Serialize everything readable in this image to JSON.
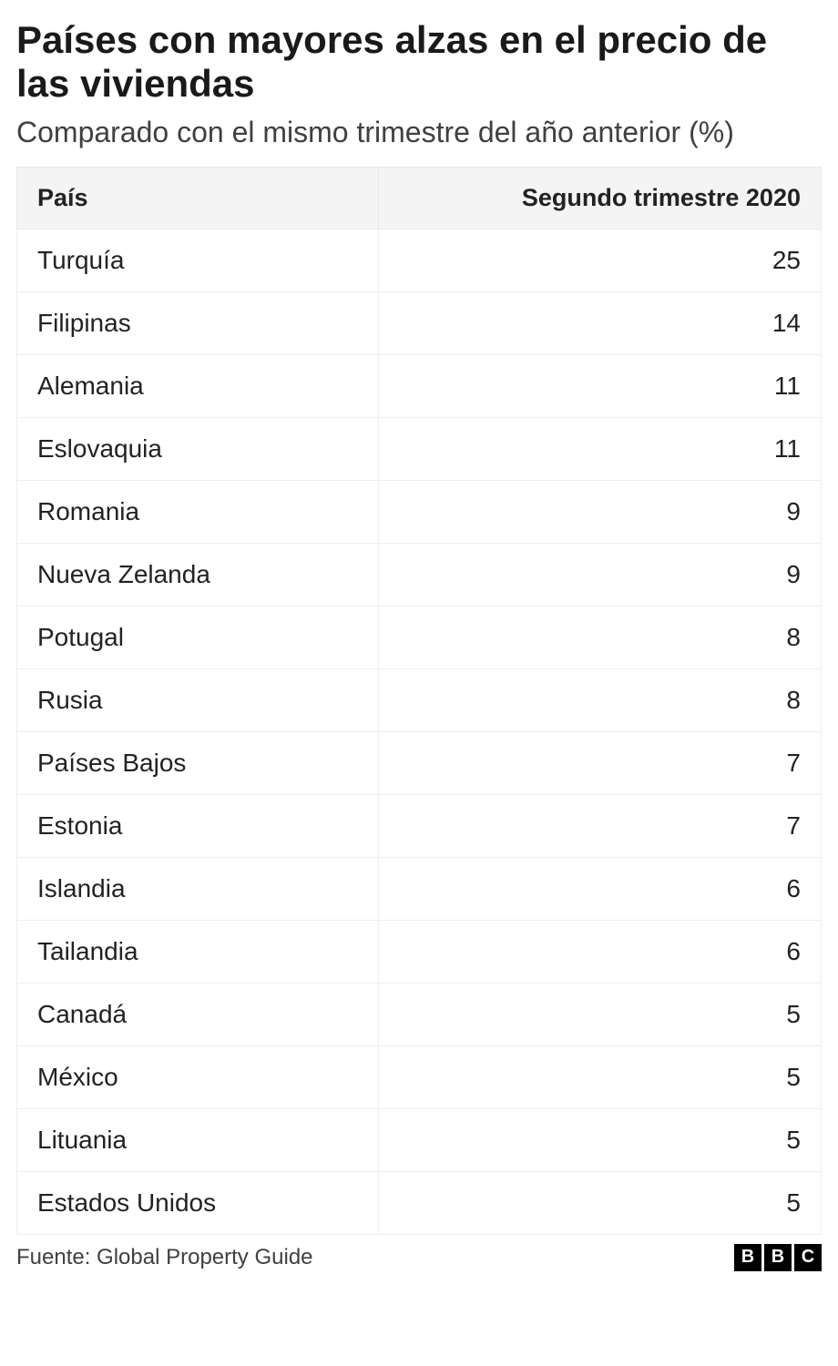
{
  "header": {
    "title": "Países con mayores alzas en el precio de las viviendas",
    "subtitle": "Comparado con el mismo trimestre del año anterior (%)"
  },
  "table": {
    "type": "table",
    "columns": [
      {
        "key": "country",
        "label": "País",
        "align": "left",
        "width_pct": 45
      },
      {
        "key": "value",
        "label": "Segundo trimestre 2020",
        "align": "right",
        "width_pct": 55
      }
    ],
    "rows": [
      {
        "country": "Turquía",
        "value": 25
      },
      {
        "country": "Filipinas",
        "value": 14
      },
      {
        "country": "Alemania",
        "value": 11
      },
      {
        "country": "Eslovaquia",
        "value": 11
      },
      {
        "country": "Romania",
        "value": 9
      },
      {
        "country": "Nueva Zelanda",
        "value": 9
      },
      {
        "country": "Potugal",
        "value": 8
      },
      {
        "country": "Rusia",
        "value": 8
      },
      {
        "country": "Países Bajos",
        "value": 7
      },
      {
        "country": "Estonia",
        "value": 7
      },
      {
        "country": "Islandia",
        "value": 6
      },
      {
        "country": "Tailandia",
        "value": 6
      },
      {
        "country": "Canadá",
        "value": 5
      },
      {
        "country": "México",
        "value": 5
      },
      {
        "country": "Lituania",
        "value": 5
      },
      {
        "country": "Estados Unidos",
        "value": 5
      }
    ],
    "header_bg": "#f4f4f4",
    "border_color": "#e8e8e8",
    "row_border_color": "#eeeeee",
    "header_fontsize": 27,
    "cell_fontsize": 28,
    "cell_padding_v": 18,
    "cell_padding_h": 22
  },
  "footer": {
    "source": "Fuente: Global Property Guide",
    "logo_letters": [
      "B",
      "B",
      "C"
    ],
    "logo_bg": "#000000",
    "logo_fg": "#ffffff"
  },
  "style": {
    "title_fontsize": 42,
    "title_weight": 700,
    "subtitle_fontsize": 32,
    "subtitle_weight": 400,
    "title_color": "#1a1a1a",
    "subtitle_color": "#404040",
    "text_color": "#222222",
    "background_color": "#ffffff",
    "footer_fontsize": 24
  }
}
